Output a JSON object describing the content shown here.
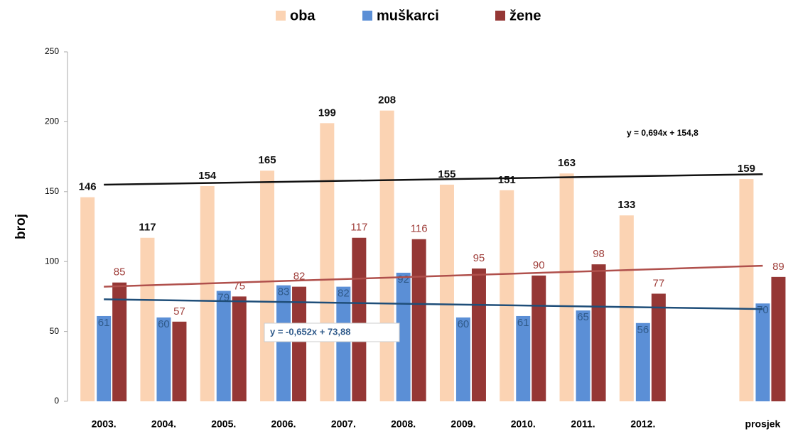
{
  "chart_data": {
    "type": "bar",
    "ylabel": "broj",
    "categories": [
      "2003.",
      "2004.",
      "2005.",
      "2006.",
      "2007.",
      "2008.",
      "2009.",
      "2010.",
      "2011.",
      "2012.",
      null,
      "prosjek"
    ],
    "series": [
      {
        "name": "oba",
        "color": "#fbd3b3",
        "label_color": "#111111",
        "values": [
          146,
          117,
          154,
          165,
          199,
          208,
          155,
          151,
          163,
          133,
          null,
          159
        ]
      },
      {
        "name": "muškarci",
        "color": "#5b8fd6",
        "label_color": "#2f5a8a",
        "values": [
          61,
          60,
          79,
          83,
          82,
          92,
          60,
          61,
          65,
          56,
          null,
          70
        ]
      },
      {
        "name": "žene",
        "color": "#953735",
        "label_color": "#a0403c",
        "values": [
          85,
          57,
          75,
          82,
          117,
          116,
          95,
          90,
          98,
          77,
          null,
          89
        ]
      }
    ],
    "trendlines": [
      {
        "color": "#111111",
        "values": [
          155,
          162.5
        ]
      },
      {
        "color": "#b0504c",
        "values": [
          82,
          97
        ]
      },
      {
        "color": "#1f4e79",
        "values": [
          73,
          66
        ]
      }
    ],
    "annotations": [
      "y = 0,694x + 154,8",
      "y = -0,652x + 73,88"
    ],
    "ylim": [
      0,
      250
    ],
    "yticks": [
      0,
      50,
      100,
      150,
      200,
      250
    ],
    "grid": false
  }
}
